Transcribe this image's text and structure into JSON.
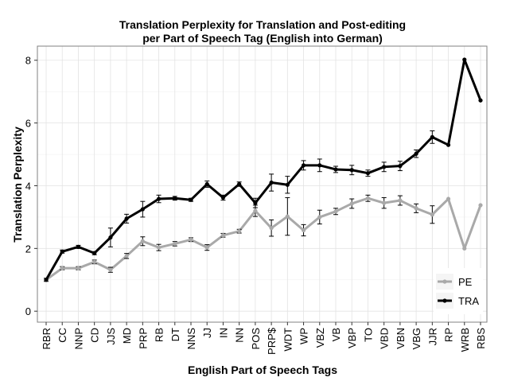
{
  "chart_data": {
    "type": "line",
    "title": [
      "Translation Perplexity for Translation and Post-editing",
      "per Part of Speech Tag (English into German)"
    ],
    "xlabel": "English Part of Speech Tags",
    "ylabel": "Translation Perplexity",
    "categories": [
      "RBR",
      "CC",
      "NNP",
      "CD",
      "JJS",
      "MD",
      "PRP",
      "RB",
      "DT",
      "NNS",
      "JJ",
      "IN",
      "NN",
      "POS",
      "PRP$",
      "WDT",
      "WP",
      "VBZ",
      "VB",
      "VBP",
      "TO",
      "VBD",
      "VBN",
      "VBG",
      "JJR",
      "RP",
      "WRB",
      "RBS"
    ],
    "yticks": [
      0,
      2,
      4,
      6,
      8
    ],
    "ylim": [
      -0.35,
      8.45
    ],
    "grid": true,
    "legend_position": "bottom-right",
    "series": [
      {
        "name": "PE",
        "color": "#a9a9a9",
        "values": [
          1.0,
          1.37,
          1.37,
          1.57,
          1.32,
          1.76,
          2.23,
          2.03,
          2.15,
          2.28,
          2.03,
          2.42,
          2.55,
          3.2,
          2.65,
          3.02,
          2.58,
          3.0,
          3.18,
          3.43,
          3.6,
          3.45,
          3.53,
          3.28,
          3.08,
          3.58,
          2.0,
          3.38
        ],
        "errors": [
          0.05,
          0.05,
          0.05,
          0.06,
          0.08,
          0.08,
          0.14,
          0.1,
          0.07,
          0.06,
          0.09,
          0.06,
          0.06,
          0.18,
          0.26,
          0.6,
          0.18,
          0.22,
          0.1,
          0.15,
          0.1,
          0.17,
          0.15,
          0.14,
          0.28,
          0.0,
          0.0,
          0.0
        ]
      },
      {
        "name": "TRA",
        "color": "#000000",
        "values": [
          1.0,
          1.9,
          2.05,
          1.85,
          2.35,
          2.95,
          3.25,
          3.58,
          3.6,
          3.55,
          4.05,
          3.62,
          4.05,
          3.45,
          4.1,
          4.03,
          4.65,
          4.65,
          4.52,
          4.5,
          4.4,
          4.6,
          4.63,
          5.02,
          5.55,
          5.3,
          8.02,
          6.72
        ],
        "errors": [
          0.0,
          0.05,
          0.05,
          0.05,
          0.3,
          0.14,
          0.25,
          0.12,
          0.06,
          0.05,
          0.1,
          0.08,
          0.07,
          0.15,
          0.27,
          0.27,
          0.15,
          0.2,
          0.1,
          0.15,
          0.1,
          0.15,
          0.15,
          0.12,
          0.2,
          0.0,
          0.0,
          0.0
        ]
      }
    ]
  }
}
